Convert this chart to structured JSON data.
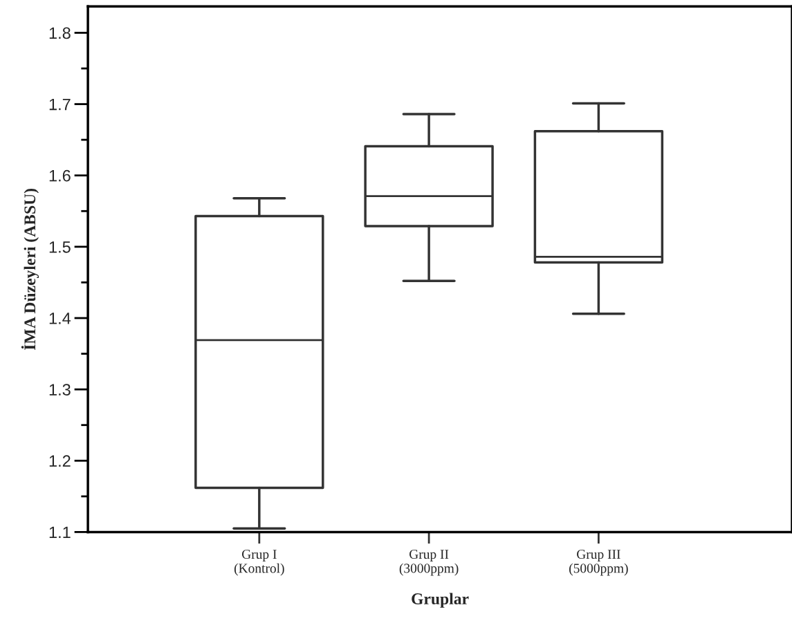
{
  "chart_data": {
    "type": "box",
    "xlabel": "Gruplar",
    "ylabel": "İMA Düzeyleri (ABSU)",
    "categories": [
      "Grup I\n(Kontrol)",
      "Grup II\n(3000ppm)",
      "Grup III\n(5000ppm)"
    ],
    "boxes": [
      {
        "low": 1.105,
        "q1": 1.162,
        "median": 1.369,
        "q3": 1.543,
        "high": 1.568
      },
      {
        "low": 1.452,
        "q1": 1.529,
        "median": 1.571,
        "q3": 1.641,
        "high": 1.686
      },
      {
        "low": 1.406,
        "q1": 1.478,
        "median": 1.486,
        "q3": 1.662,
        "high": 1.701
      }
    ],
    "color": "#333333",
    "ylim": [
      1.1,
      1.837
    ],
    "yticks": [
      1.1,
      {
        "value": 1.15,
        "label": null
      },
      1.2,
      {
        "value": 1.25,
        "label": null
      },
      1.3,
      {
        "value": 1.35,
        "label": null
      },
      1.4,
      {
        "value": 1.45,
        "label": null
      },
      1.5,
      {
        "value": 1.55,
        "label": null
      },
      1.6,
      {
        "value": 1.65,
        "label": null
      },
      1.7,
      {
        "value": 1.75,
        "label": null
      },
      1.8
    ],
    "grid": false
  }
}
